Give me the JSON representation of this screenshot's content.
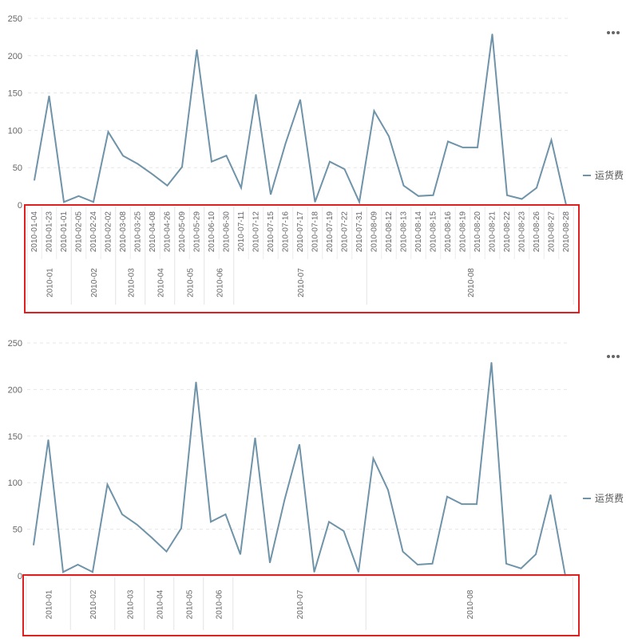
{
  "more_icon": "more-dots-icon",
  "colors": {
    "series": "#6f93a8",
    "highlight": "#e02020"
  },
  "chart_data": [
    {
      "type": "line",
      "x": [
        "2010-01-04",
        "2010-01-23",
        "2010-01-01",
        "2010-02-05",
        "2010-02-24",
        "2010-02-02",
        "2010-03-08",
        "2010-03-25",
        "2010-04-08",
        "2010-04-26",
        "2010-05-09",
        "2010-05-29",
        "2010-06-10",
        "2010-06-30",
        "2010-07-11",
        "2010-07-12",
        "2010-07-15",
        "2010-07-16",
        "2010-07-17",
        "2010-07-18",
        "2010-07-19",
        "2010-07-22",
        "2010-07-31",
        "2010-08-09",
        "2010-08-12",
        "2010-08-13",
        "2010-08-14",
        "2010-08-15",
        "2010-08-16",
        "2010-08-19",
        "2010-08-20",
        "2010-08-21",
        "2010-08-22",
        "2010-08-23",
        "2010-08-26",
        "2010-08-27",
        "2010-08-28"
      ],
      "months": [
        {
          "label": "2010-01",
          "count": 3
        },
        {
          "label": "2010-02",
          "count": 3
        },
        {
          "label": "2010-03",
          "count": 2
        },
        {
          "label": "2010-04",
          "count": 2
        },
        {
          "label": "2010-05",
          "count": 2
        },
        {
          "label": "2010-06",
          "count": 2
        },
        {
          "label": "2010-07",
          "count": 9
        },
        {
          "label": "2010-08",
          "count": 14
        }
      ],
      "series": [
        {
          "name": "运货费",
          "values": [
            33,
            146,
            4,
            12,
            4,
            98,
            66,
            55,
            41,
            26,
            51,
            208,
            58,
            66,
            23,
            148,
            14,
            82,
            141,
            4,
            58,
            48,
            4,
            126,
            92,
            26,
            12,
            13,
            85,
            77,
            77,
            229,
            13,
            8,
            23,
            87,
            0
          ]
        }
      ],
      "ylim": [
        0,
        250
      ],
      "yticks": [
        "0",
        "50",
        "100",
        "150",
        "200",
        "250"
      ],
      "legend": "right",
      "grid": true
    },
    {
      "type": "line",
      "months": [
        {
          "label": "2010-01",
          "count": 3
        },
        {
          "label": "2010-02",
          "count": 3
        },
        {
          "label": "2010-03",
          "count": 2
        },
        {
          "label": "2010-04",
          "count": 2
        },
        {
          "label": "2010-05",
          "count": 2
        },
        {
          "label": "2010-06",
          "count": 2
        },
        {
          "label": "2010-07",
          "count": 9
        },
        {
          "label": "2010-08",
          "count": 14
        }
      ],
      "series": [
        {
          "name": "运货费",
          "values": [
            33,
            146,
            4,
            12,
            4,
            98,
            66,
            55,
            41,
            26,
            51,
            208,
            58,
            66,
            23,
            148,
            14,
            82,
            141,
            4,
            58,
            48,
            4,
            126,
            92,
            26,
            12,
            13,
            85,
            77,
            77,
            229,
            13,
            8,
            23,
            87,
            0
          ]
        }
      ],
      "ylim": [
        0,
        250
      ],
      "yticks": [
        "0",
        "50",
        "100",
        "150",
        "200",
        "250"
      ],
      "legend": "right",
      "grid": true
    }
  ]
}
